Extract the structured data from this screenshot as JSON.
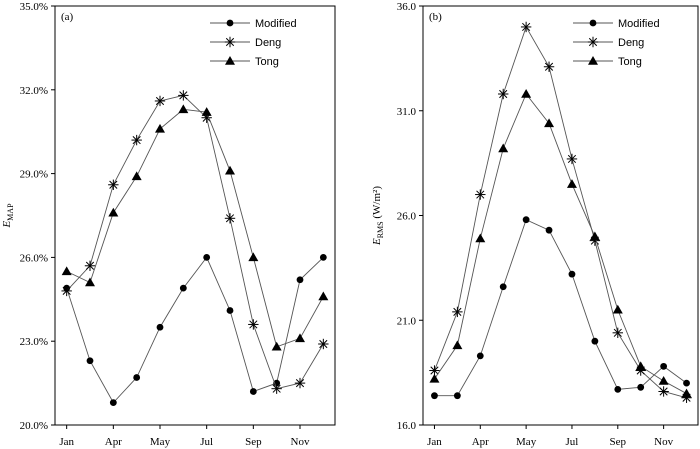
{
  "chart_data": [
    {
      "type": "line",
      "panel_label": "(a)",
      "ylabel": "E",
      "ylabel_sub": "MAP",
      "ylabel_unit": "",
      "ylim": [
        20,
        35
      ],
      "yticks": [
        20,
        23,
        26,
        29,
        32,
        35
      ],
      "ytick_labels": [
        "20.0%",
        "23.0%",
        "26.0%",
        "29.0%",
        "32.0%",
        "35.0%"
      ],
      "x": [
        1,
        2,
        3,
        4,
        5,
        6,
        7,
        8,
        9,
        10,
        11,
        12
      ],
      "xlim": [
        0.5,
        12.5
      ],
      "xticks": [
        1,
        3,
        5,
        7,
        9,
        11
      ],
      "xtick_labels": [
        "Jan",
        "Apr",
        "May",
        "Jul",
        "Sep",
        "Nov"
      ],
      "legend": "top-right",
      "series": [
        {
          "name": "Modified",
          "marker": "circle",
          "values": [
            24.9,
            22.3,
            20.8,
            21.7,
            23.5,
            24.9,
            26.0,
            24.1,
            21.2,
            21.5,
            25.2,
            26.0
          ]
        },
        {
          "name": "Deng",
          "marker": "star",
          "values": [
            24.8,
            25.7,
            28.6,
            30.2,
            31.6,
            31.8,
            31.0,
            27.4,
            23.6,
            21.3,
            21.5,
            22.9
          ]
        },
        {
          "name": "Tong",
          "marker": "triangle",
          "values": [
            25.5,
            25.1,
            27.6,
            28.9,
            30.6,
            31.3,
            31.2,
            29.1,
            26.0,
            22.8,
            23.1,
            24.6
          ]
        }
      ]
    },
    {
      "type": "line",
      "panel_label": "(b)",
      "ylabel": "E",
      "ylabel_sub": "RMS",
      "ylabel_unit": "(W/m²)",
      "ylim": [
        16,
        36
      ],
      "yticks": [
        16,
        21,
        26,
        31,
        36
      ],
      "ytick_labels": [
        "16.0",
        "21.0",
        "26.0",
        "31.0",
        "36.0"
      ],
      "x": [
        1,
        2,
        3,
        4,
        5,
        6,
        7,
        8,
        9,
        10,
        11,
        12
      ],
      "xlim": [
        0.5,
        12.5
      ],
      "xticks": [
        1,
        3,
        5,
        7,
        9,
        11
      ],
      "xtick_labels": [
        "Jan",
        "Apr",
        "May",
        "Jul",
        "Sep",
        "Nov"
      ],
      "legend": "top-right",
      "series": [
        {
          "name": "Modified",
          "marker": "circle",
          "values": [
            17.4,
            17.4,
            19.3,
            22.6,
            25.8,
            25.3,
            23.2,
            20.0,
            17.7,
            17.8,
            18.8,
            18.0
          ]
        },
        {
          "name": "Deng",
          "marker": "star",
          "values": [
            18.6,
            21.4,
            27.0,
            31.8,
            35.0,
            33.1,
            28.7,
            24.8,
            20.4,
            18.6,
            17.6,
            17.3
          ]
        },
        {
          "name": "Tong",
          "marker": "triangle",
          "values": [
            18.2,
            19.8,
            24.9,
            29.2,
            31.8,
            30.4,
            27.5,
            25.0,
            21.5,
            18.8,
            18.1,
            17.5
          ]
        }
      ]
    }
  ]
}
